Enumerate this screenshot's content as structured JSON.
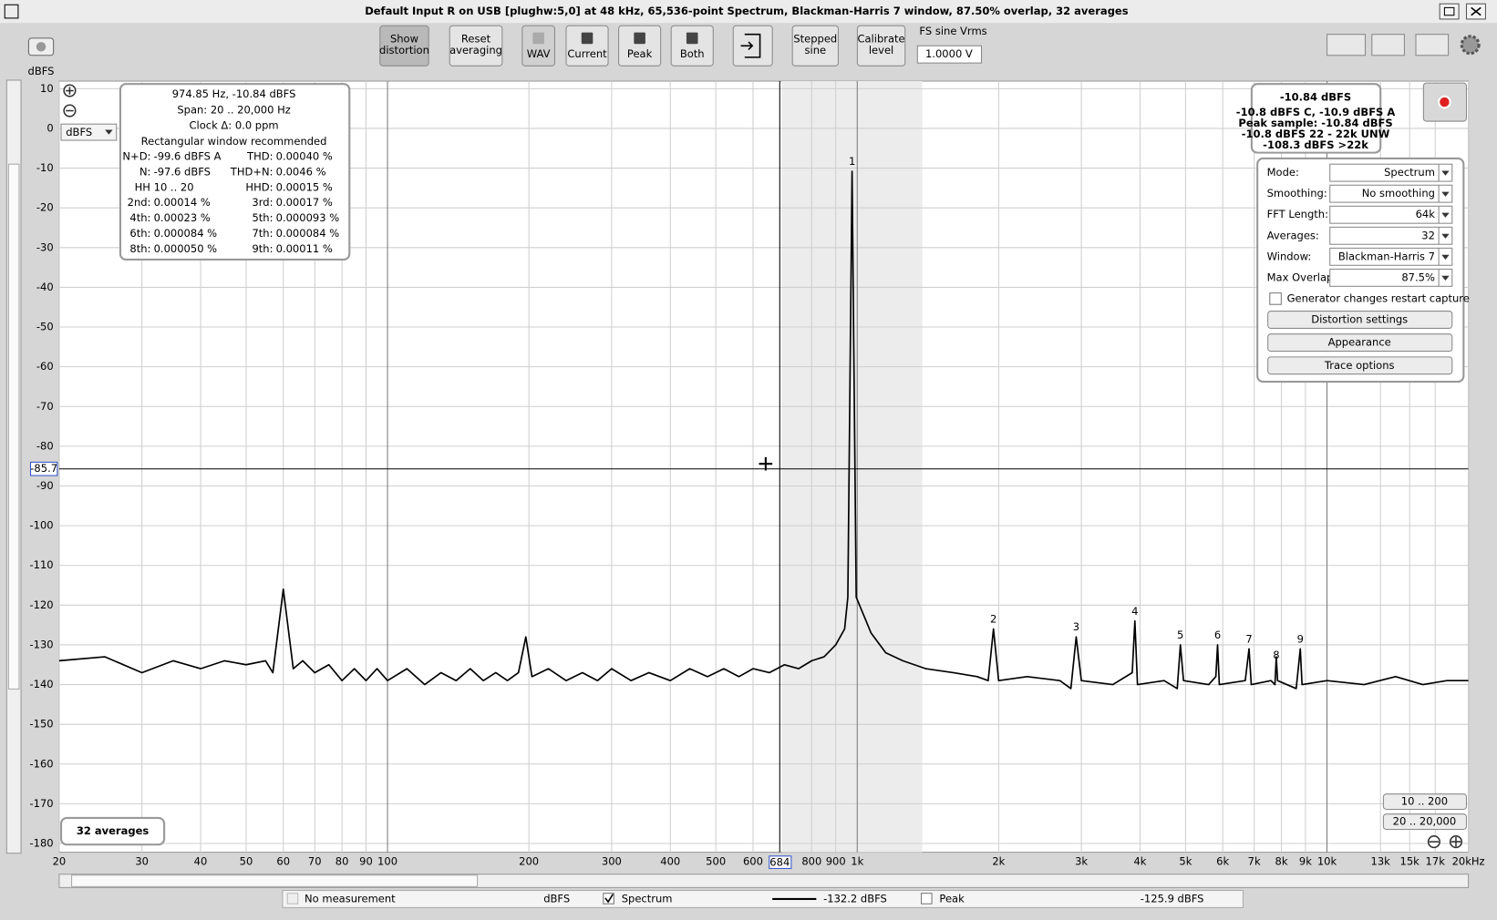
{
  "window": {
    "title": "Default Input R on USB [plughw:5,0] at 48 kHz, 65,536-point Spectrum, Blackman-Harris 7 window, 87.50% overlap, 32 averages"
  },
  "toolbar": {
    "buttons": [
      {
        "lines": [
          "Show",
          "distortion"
        ]
      },
      {
        "lines": [
          "Reset",
          "averaging"
        ]
      },
      {
        "lines": [
          "WAV"
        ]
      },
      {
        "lines": [
          "Current"
        ]
      },
      {
        "lines": [
          "Peak"
        ]
      },
      {
        "lines": [
          "Both"
        ]
      },
      {
        "lines": [
          "Stepped",
          "sine"
        ]
      },
      {
        "lines": [
          "Calibrate",
          "level"
        ]
      }
    ],
    "fs_label": "FS sine Vrms",
    "fs_value": "1.0000 V"
  },
  "unit_select": "dBFS",
  "info_panel": {
    "lines": [
      "974.85 Hz, -10.84 dBFS",
      "Span: 20 .. 20,000 Hz",
      "Clock Δ: 0.0 ppm",
      "Rectangular window recommended"
    ],
    "rows": [
      {
        "l": "N+D:",
        "lv": "-99.6 dBFS A",
        "r": "THD:",
        "rv": "0.00040 %"
      },
      {
        "l": "N:",
        "lv": "-97.6 dBFS",
        "r": "THD+N:",
        "rv": "0.0046 %"
      },
      {
        "l": "HH 10 .. 20",
        "r": "HHD:",
        "rv": "0.00015 %"
      },
      {
        "l": "2nd:",
        "lv": "0.00014 %",
        "r": "3rd:",
        "rv": "0.00017 %"
      },
      {
        "l": "4th:",
        "lv": "0.00023 %",
        "r": "5th:",
        "rv": "0.000093 %"
      },
      {
        "l": "6th:",
        "lv": "0.000084 %",
        "r": "7th:",
        "rv": "0.000084 %"
      },
      {
        "l": "8th:",
        "lv": "0.000050 %",
        "r": "9th:",
        "rv": "0.00011 %"
      }
    ]
  },
  "level_panel": {
    "main": "-10.84 dBFS",
    "lines": [
      "-10.8 dBFS C, -10.9 dBFS A",
      "Peak sample: -10.84 dBFS",
      "-10.8 dBFS 22 - 22k UNW",
      "-108.3 dBFS >22k"
    ]
  },
  "controls": {
    "rows": [
      [
        "Mode:",
        "Spectrum"
      ],
      [
        "Smoothing:",
        "No  smoothing"
      ],
      [
        "FFT Length:",
        "64k"
      ],
      [
        "Averages:",
        "32"
      ],
      [
        "Window:",
        "Blackman-Harris 7"
      ],
      [
        "Max Overlap:",
        "87.5%"
      ]
    ],
    "checkbox": "Generator changes restart capture",
    "buttons": [
      "Distortion settings",
      "Appearance",
      "Trace options"
    ]
  },
  "range_buttons": [
    "10 .. 200",
    "20 .. 20,000"
  ],
  "averages_badge": "32 averages",
  "legend_bar": {
    "no_measurement": "No measurement",
    "no_measurement_unit": "dBFS",
    "spectrum_level": "-132.2 dBFS",
    "peak_name": "Peak",
    "peak_level": "-125.9 dBFS"
  },
  "chart_data": {
    "type": "line",
    "y_label": "dBFS",
    "x_log": true,
    "grid": true,
    "xlim": [
      20,
      20000
    ],
    "ylim": [
      -182.2,
      11.9
    ],
    "xticks": [
      20,
      30,
      40,
      50,
      60,
      70,
      80,
      90,
      100,
      200,
      300,
      400,
      500,
      600,
      800,
      900,
      {
        "value": 1000,
        "label": "1k"
      },
      {
        "value": 2000,
        "label": "2k"
      },
      {
        "value": 3000,
        "label": "3k"
      },
      {
        "value": 4000,
        "label": "4k"
      },
      {
        "value": 5000,
        "label": "5k"
      },
      {
        "value": 6000,
        "label": "6k"
      },
      {
        "value": 7000,
        "label": "7k"
      },
      {
        "value": 8000,
        "label": "8k"
      },
      {
        "value": 9000,
        "label": "9k"
      },
      {
        "value": 10000,
        "label": "10k"
      },
      {
        "value": 13000,
        "label": "13k"
      },
      {
        "value": 15000,
        "label": "15k"
      },
      {
        "value": 17000,
        "label": "17k"
      },
      {
        "value": 20000,
        "label": "20kHz"
      }
    ],
    "yticks": [
      10,
      0,
      -10,
      -20,
      -30,
      -40,
      -50,
      -60,
      -70,
      -80,
      -90,
      -100,
      -110,
      -120,
      -130,
      -140,
      -150,
      -160,
      -170,
      -180
    ],
    "cursor": {
      "x": 684,
      "y": -85.7
    },
    "harmonics": [
      {
        "label": "1",
        "x": 975,
        "y": -10.8
      },
      {
        "label": "2",
        "x": 1950,
        "y": -126
      },
      {
        "label": "3",
        "x": 2925,
        "y": -128
      },
      {
        "label": "4",
        "x": 3900,
        "y": -124
      },
      {
        "label": "5",
        "x": 4875,
        "y": -130
      },
      {
        "label": "6",
        "x": 5850,
        "y": -130
      },
      {
        "label": "7",
        "x": 6825,
        "y": -131
      },
      {
        "label": "8",
        "x": 7800,
        "y": -135
      },
      {
        "label": "9",
        "x": 8775,
        "y": -131
      }
    ],
    "series": [
      {
        "name": "Spectrum",
        "color": "#000000",
        "x": [
          20,
          25,
          30,
          35,
          40,
          45,
          50,
          55,
          57,
          60,
          63,
          66,
          70,
          75,
          80,
          85,
          90,
          95,
          100,
          110,
          120,
          130,
          140,
          150,
          160,
          170,
          180,
          190,
          197,
          203,
          220,
          240,
          260,
          280,
          300,
          330,
          360,
          400,
          440,
          480,
          520,
          560,
          600,
          650,
          700,
          750,
          800,
          850,
          900,
          940,
          955,
          975,
          995,
          1070,
          1150,
          1250,
          1400,
          1600,
          1800,
          1900,
          1950,
          2000,
          2300,
          2700,
          2850,
          2925,
          3000,
          3500,
          3850,
          3900,
          3950,
          4500,
          4800,
          4875,
          4950,
          5600,
          5800,
          5850,
          5900,
          6700,
          6825,
          6900,
          7600,
          7750,
          7800,
          7850,
          8600,
          8775,
          8850,
          10000,
          12000,
          14000,
          16000,
          18000,
          20000
        ],
        "values": [
          -134,
          -133,
          -137,
          -134,
          -136,
          -134,
          -135,
          -134,
          -137,
          -116,
          -136,
          -134,
          -137,
          -135,
          -139,
          -136,
          -139,
          -136,
          -139,
          -136,
          -140,
          -137,
          -139,
          -136,
          -139,
          -137,
          -139,
          -137,
          -128,
          -138,
          -136,
          -139,
          -137,
          -139,
          -136,
          -139,
          -137,
          -139,
          -136,
          -138,
          -136,
          -138,
          -136,
          -137,
          -135,
          -136,
          -134,
          -133,
          -130,
          -126,
          -118,
          -10.8,
          -118,
          -127,
          -132,
          -134,
          -136,
          -137,
          -138,
          -139,
          -126,
          -139,
          -138,
          -139,
          -141,
          -128,
          -139,
          -140,
          -137,
          -124,
          -140,
          -139,
          -141,
          -130,
          -139,
          -140,
          -138,
          -130,
          -140,
          -139,
          -131,
          -140,
          -139,
          -140,
          -133,
          -139,
          -141,
          -131,
          -140,
          -139,
          -140,
          -138,
          -140,
          -139,
          -139
        ]
      }
    ]
  }
}
